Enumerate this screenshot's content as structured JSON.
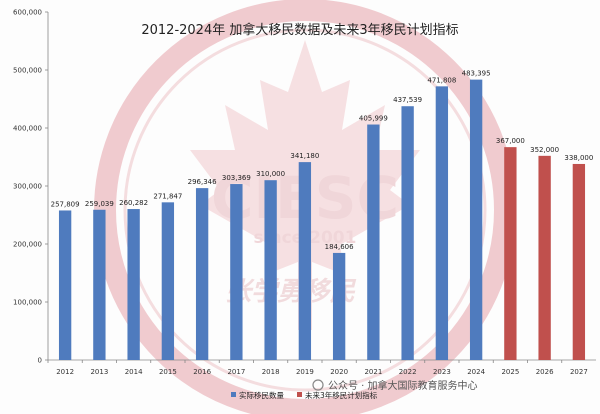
{
  "chart_data": {
    "type": "bar",
    "title": "2012-2024年 加拿大移民数据及未来3年移民计划指标",
    "categories": [
      "2012",
      "2013",
      "2014",
      "2015",
      "2016",
      "2017",
      "2018",
      "2019",
      "2020",
      "2021",
      "2022",
      "2023",
      "2024",
      "2025",
      "2026",
      "2027"
    ],
    "values": [
      257809,
      259039,
      260282,
      271847,
      296346,
      303369,
      310000,
      341180,
      184606,
      405999,
      437539,
      471808,
      483395,
      367000,
      352000,
      338000
    ],
    "value_labels": [
      "257,809",
      "259,039",
      "260,282",
      "271,847",
      "296,346",
      "303,369",
      "310,000",
      "341,180",
      "184,606",
      "405,999",
      "437,539",
      "471,808",
      "483,395",
      "367,000",
      "352,000",
      "338,000"
    ],
    "series": [
      {
        "name": "实际移民数量",
        "color": "#4f7bbe",
        "categories": [
          "2012",
          "2013",
          "2014",
          "2015",
          "2016",
          "2017",
          "2018",
          "2019",
          "2020",
          "2021",
          "2022",
          "2023",
          "2024"
        ]
      },
      {
        "name": "未来3年移民计划指标",
        "color": "#c0504d",
        "categories": [
          "2025",
          "2026",
          "2027"
        ]
      }
    ],
    "y_ticks": [
      "0",
      "100,000",
      "200,000",
      "300,000",
      "400,000",
      "500,000",
      "600,000"
    ],
    "ylim": [
      0,
      600000
    ],
    "y_step": 100000,
    "xlabel": "",
    "ylabel": "",
    "grid": false,
    "legend_position": "bottom"
  },
  "watermark": {
    "logo": "CIESC",
    "since": "since 2001",
    "signature": "张学勇移民"
  },
  "credit": {
    "prefix": "公众号 · ",
    "account": "加拿大国际教育服务中心"
  }
}
